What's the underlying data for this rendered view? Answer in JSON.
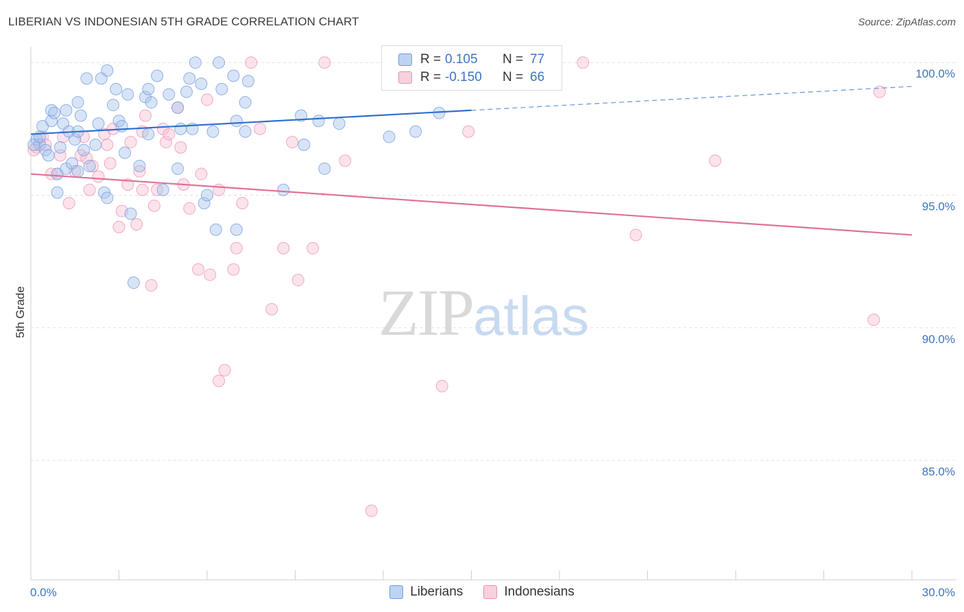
{
  "title": "LIBERIAN VS INDONESIAN 5TH GRADE CORRELATION CHART",
  "source": "Source: ZipAtlas.com",
  "watermark": {
    "zip": "ZIP",
    "atlas": "atlas"
  },
  "legend": {
    "rows": [
      {
        "r_label": "R =",
        "r_value": "0.105",
        "n_label": "N =",
        "n_value": "77",
        "color": "#a9c4ec",
        "border": "#6f9be0"
      },
      {
        "r_label": "R =",
        "r_value": "-0.150",
        "n_label": "N =",
        "n_value": "66",
        "color": "#f7c0d2",
        "border": "#ee8fb0"
      }
    ]
  },
  "bottom_legend": [
    {
      "label": "Liberians",
      "color": "#bcd3f3",
      "border": "#6f9be0"
    },
    {
      "label": "Indonesians",
      "color": "#f9d0de",
      "border": "#ee8fb0"
    }
  ],
  "chart_data": {
    "type": "scatter",
    "title": "LIBERIAN VS INDONESIAN 5TH GRADE CORRELATION CHART",
    "xlabel": "",
    "ylabel": "5th Grade",
    "xlim": [
      0,
      30
    ],
    "ylim": [
      80.5,
      100.6
    ],
    "x_ticks": [
      "0.0%",
      "30.0%"
    ],
    "y_ticks": [
      {
        "value": 100,
        "label": "100.0%"
      },
      {
        "value": 95,
        "label": "95.0%"
      },
      {
        "value": 90,
        "label": "90.0%"
      },
      {
        "value": 85,
        "label": "85.0%"
      }
    ],
    "grid": true,
    "series": [
      {
        "name": "Liberians",
        "color": "#6f9be0",
        "fill": "#a9c4ec",
        "trend": {
          "x0": 0,
          "y0": 97.3,
          "x1": 15,
          "y1": 98.2,
          "x_dash_end": 30,
          "y_dash_end": 99.1
        },
        "points": [
          [
            0.2,
            97.1
          ],
          [
            0.3,
            96.9
          ],
          [
            0.4,
            97.6
          ],
          [
            0.5,
            96.7
          ],
          [
            0.6,
            96.5
          ],
          [
            0.7,
            97.8
          ],
          [
            0.7,
            98.2
          ],
          [
            0.8,
            98.1
          ],
          [
            0.9,
            95.8
          ],
          [
            0.9,
            95.1
          ],
          [
            1.0,
            96.8
          ],
          [
            1.1,
            97.7
          ],
          [
            1.2,
            98.2
          ],
          [
            1.2,
            96.0
          ],
          [
            1.3,
            97.4
          ],
          [
            1.4,
            96.2
          ],
          [
            1.5,
            97.1
          ],
          [
            1.6,
            98.5
          ],
          [
            1.6,
            97.4
          ],
          [
            1.7,
            98.0
          ],
          [
            1.8,
            96.7
          ],
          [
            1.9,
            99.4
          ],
          [
            2.0,
            96.1
          ],
          [
            2.2,
            96.9
          ],
          [
            2.3,
            97.7
          ],
          [
            2.4,
            99.4
          ],
          [
            2.5,
            95.1
          ],
          [
            2.6,
            99.7
          ],
          [
            2.8,
            98.4
          ],
          [
            2.9,
            99.0
          ],
          [
            3.0,
            97.8
          ],
          [
            3.1,
            97.6
          ],
          [
            3.2,
            96.6
          ],
          [
            3.3,
            98.8
          ],
          [
            3.4,
            94.3
          ],
          [
            3.5,
            91.7
          ],
          [
            3.7,
            96.1
          ],
          [
            3.9,
            98.7
          ],
          [
            4.0,
            99.0
          ],
          [
            4.0,
            97.3
          ],
          [
            4.1,
            98.5
          ],
          [
            4.3,
            99.5
          ],
          [
            4.5,
            95.2
          ],
          [
            4.7,
            98.8
          ],
          [
            5.0,
            98.3
          ],
          [
            5.1,
            97.5
          ],
          [
            5.3,
            98.9
          ],
          [
            5.4,
            99.4
          ],
          [
            5.5,
            97.5
          ],
          [
            5.6,
            100.0
          ],
          [
            5.8,
            99.2
          ],
          [
            5.9,
            94.7
          ],
          [
            6.0,
            95.0
          ],
          [
            6.2,
            97.4
          ],
          [
            6.3,
            93.7
          ],
          [
            6.4,
            100.0
          ],
          [
            6.5,
            99.0
          ],
          [
            6.9,
            99.5
          ],
          [
            7.0,
            97.8
          ],
          [
            7.3,
            97.4
          ],
          [
            7.3,
            98.5
          ],
          [
            7.4,
            99.3
          ],
          [
            8.6,
            95.2
          ],
          [
            9.2,
            98.0
          ],
          [
            9.3,
            96.9
          ],
          [
            9.8,
            97.8
          ],
          [
            10.0,
            96.0
          ],
          [
            10.5,
            97.7
          ],
          [
            12.2,
            97.2
          ],
          [
            13.1,
            97.4
          ],
          [
            13.9,
            98.1
          ],
          [
            0.1,
            96.9
          ],
          [
            0.3,
            97.2
          ],
          [
            1.6,
            95.9
          ],
          [
            2.6,
            94.9
          ],
          [
            5.0,
            96.0
          ],
          [
            7.0,
            93.7
          ]
        ]
      },
      {
        "name": "Indonesians",
        "color": "#ee8fb0",
        "fill": "#f7c0d2",
        "trend": {
          "x0": 0,
          "y0": 95.8,
          "x1": 30,
          "y1": 93.5
        },
        "points": [
          [
            0.2,
            96.8
          ],
          [
            0.4,
            97.2
          ],
          [
            0.5,
            96.9
          ],
          [
            0.7,
            95.8
          ],
          [
            0.9,
            95.8
          ],
          [
            1.0,
            96.5
          ],
          [
            1.1,
            97.2
          ],
          [
            1.3,
            94.7
          ],
          [
            1.5,
            95.9
          ],
          [
            1.7,
            96.5
          ],
          [
            1.8,
            97.2
          ],
          [
            1.9,
            96.4
          ],
          [
            2.0,
            95.2
          ],
          [
            2.1,
            96.1
          ],
          [
            2.3,
            95.7
          ],
          [
            2.5,
            97.3
          ],
          [
            2.6,
            96.9
          ],
          [
            2.7,
            96.2
          ],
          [
            2.8,
            97.5
          ],
          [
            3.0,
            93.8
          ],
          [
            3.1,
            94.4
          ],
          [
            3.3,
            95.4
          ],
          [
            3.4,
            97.0
          ],
          [
            3.6,
            93.9
          ],
          [
            3.7,
            95.9
          ],
          [
            3.8,
            95.2
          ],
          [
            3.9,
            98.0
          ],
          [
            4.1,
            91.6
          ],
          [
            4.2,
            94.6
          ],
          [
            4.3,
            95.2
          ],
          [
            4.5,
            97.5
          ],
          [
            4.6,
            97.0
          ],
          [
            4.7,
            97.3
          ],
          [
            5.0,
            98.3
          ],
          [
            5.1,
            96.8
          ],
          [
            5.2,
            95.4
          ],
          [
            5.4,
            94.5
          ],
          [
            5.7,
            92.2
          ],
          [
            5.8,
            95.8
          ],
          [
            6.0,
            98.6
          ],
          [
            6.1,
            92.0
          ],
          [
            6.4,
            88.0
          ],
          [
            6.6,
            88.4
          ],
          [
            6.4,
            95.2
          ],
          [
            6.9,
            92.2
          ],
          [
            7.0,
            93.0
          ],
          [
            7.2,
            94.7
          ],
          [
            7.5,
            100.0
          ],
          [
            7.8,
            97.5
          ],
          [
            8.2,
            90.7
          ],
          [
            8.6,
            93.0
          ],
          [
            8.9,
            97.0
          ],
          [
            9.1,
            91.8
          ],
          [
            9.6,
            93.0
          ],
          [
            10.0,
            100.0
          ],
          [
            10.7,
            96.3
          ],
          [
            11.6,
            83.1
          ],
          [
            14.0,
            87.8
          ],
          [
            14.9,
            97.4
          ],
          [
            18.8,
            100.0
          ],
          [
            20.6,
            93.5
          ],
          [
            23.3,
            96.3
          ],
          [
            28.7,
            90.3
          ],
          [
            28.9,
            98.9
          ],
          [
            0.1,
            96.7
          ],
          [
            3.8,
            97.4
          ]
        ]
      }
    ]
  }
}
